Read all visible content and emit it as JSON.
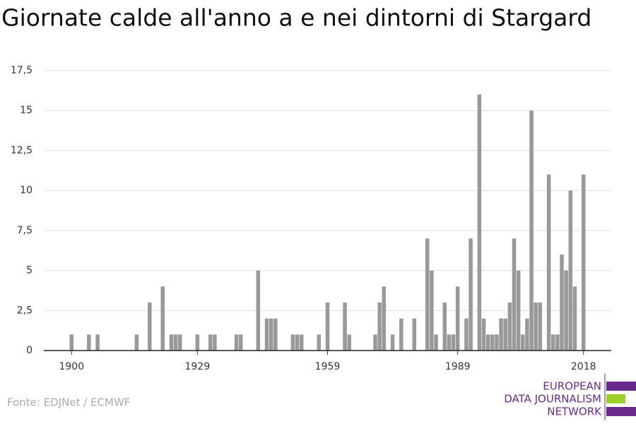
{
  "chart_data": {
    "type": "bar",
    "title": "Giornate calde all'anno a e nei dintorni di Stargard",
    "x": [
      1900,
      1904,
      1906,
      1915,
      1918,
      1921,
      1923,
      1924,
      1925,
      1929,
      1932,
      1933,
      1938,
      1939,
      1943,
      1945,
      1946,
      1947,
      1951,
      1952,
      1953,
      1957,
      1959,
      1963,
      1964,
      1970,
      1971,
      1972,
      1974,
      1976,
      1979,
      1982,
      1983,
      1984,
      1986,
      1987,
      1988,
      1989,
      1991,
      1992,
      1994,
      1995,
      1996,
      1997,
      1998,
      1999,
      2000,
      2001,
      2002,
      2003,
      2004,
      2005,
      2006,
      2007,
      2008,
      2010,
      2011,
      2012,
      2013,
      2014,
      2015,
      2016,
      2018
    ],
    "values": [
      1,
      1,
      1,
      1,
      3,
      4,
      1,
      1,
      1,
      1,
      1,
      1,
      1,
      1,
      5,
      2,
      2,
      2,
      1,
      1,
      1,
      1,
      3,
      3,
      1,
      1,
      3,
      4,
      1,
      2,
      2,
      7,
      5,
      1,
      3,
      1,
      1,
      4,
      2,
      7,
      16,
      2,
      1,
      1,
      1,
      2,
      2,
      3,
      7,
      5,
      1,
      2,
      15,
      3,
      3,
      11,
      1,
      1,
      6,
      5,
      10,
      4,
      11
    ],
    "color": "#999999",
    "xlim": [
      1893.6,
      2024.4
    ],
    "xticks": [
      1900,
      1929,
      1959,
      1989,
      2018
    ],
    "ylim": [
      0,
      17.5
    ],
    "yticks": [
      0,
      {
        "value": 2.5,
        "label": "2,5"
      },
      5,
      {
        "value": 7.5,
        "label": "7,5"
      },
      10,
      {
        "value": 12.5,
        "label": "12,5"
      },
      15,
      {
        "value": 17.5,
        "label": "17,5"
      }
    ],
    "grid": true
  },
  "source": "Fonte: EDJNet / ECMWF",
  "logo": [
    "EUROPEAN",
    "DATA JOURNALISM",
    "NETWORK"
  ]
}
